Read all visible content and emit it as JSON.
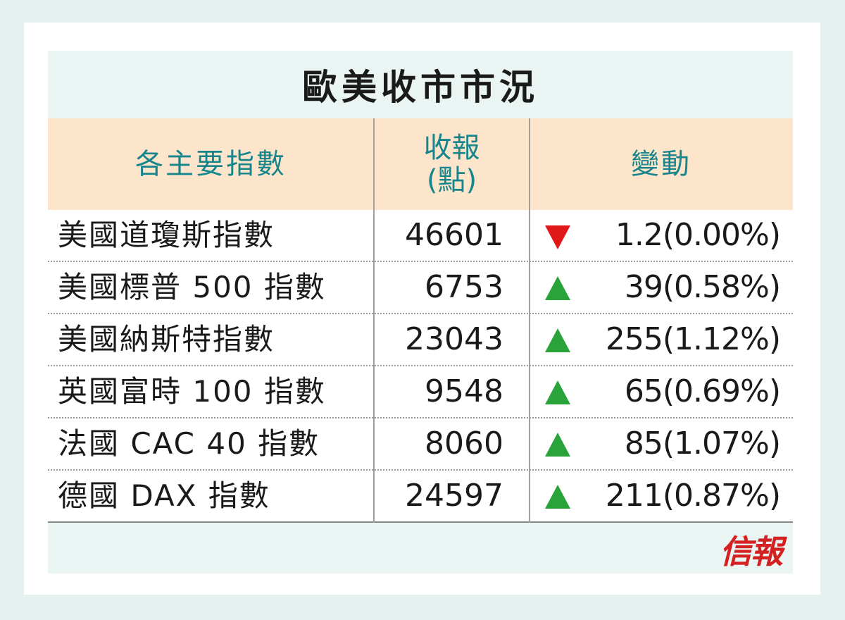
{
  "title": "歐美收市市況",
  "header": {
    "col1": "各主要指數",
    "col2_line1": "收報",
    "col2_line2": "(點)",
    "col3": "變動"
  },
  "rows": [
    {
      "name": "美國道瓊斯指數",
      "close": "46601",
      "direction": "down",
      "change": "1.2(0.00%)"
    },
    {
      "name": "美國標普 500 指數",
      "close": "6753",
      "direction": "up",
      "change": "39(0.58%)"
    },
    {
      "name": "美國納斯特指數",
      "close": "23043",
      "direction": "up",
      "change": "255(1.12%)"
    },
    {
      "name": "英國富時 100 指數",
      "close": "9548",
      "direction": "up",
      "change": "65(0.69%)"
    },
    {
      "name": "法國 CAC 40 指數",
      "close": "8060",
      "direction": "up",
      "change": "85(1.07%)"
    },
    {
      "name": "德國 DAX 指數",
      "close": "24597",
      "direction": "up",
      "change": "211(0.87%)"
    }
  ],
  "logo_text": "信報",
  "colors": {
    "up": "#2aa33a",
    "down": "#e01818",
    "header_bg": "#fde5cc",
    "header_text": "#17858c",
    "logo": "#d42020"
  }
}
